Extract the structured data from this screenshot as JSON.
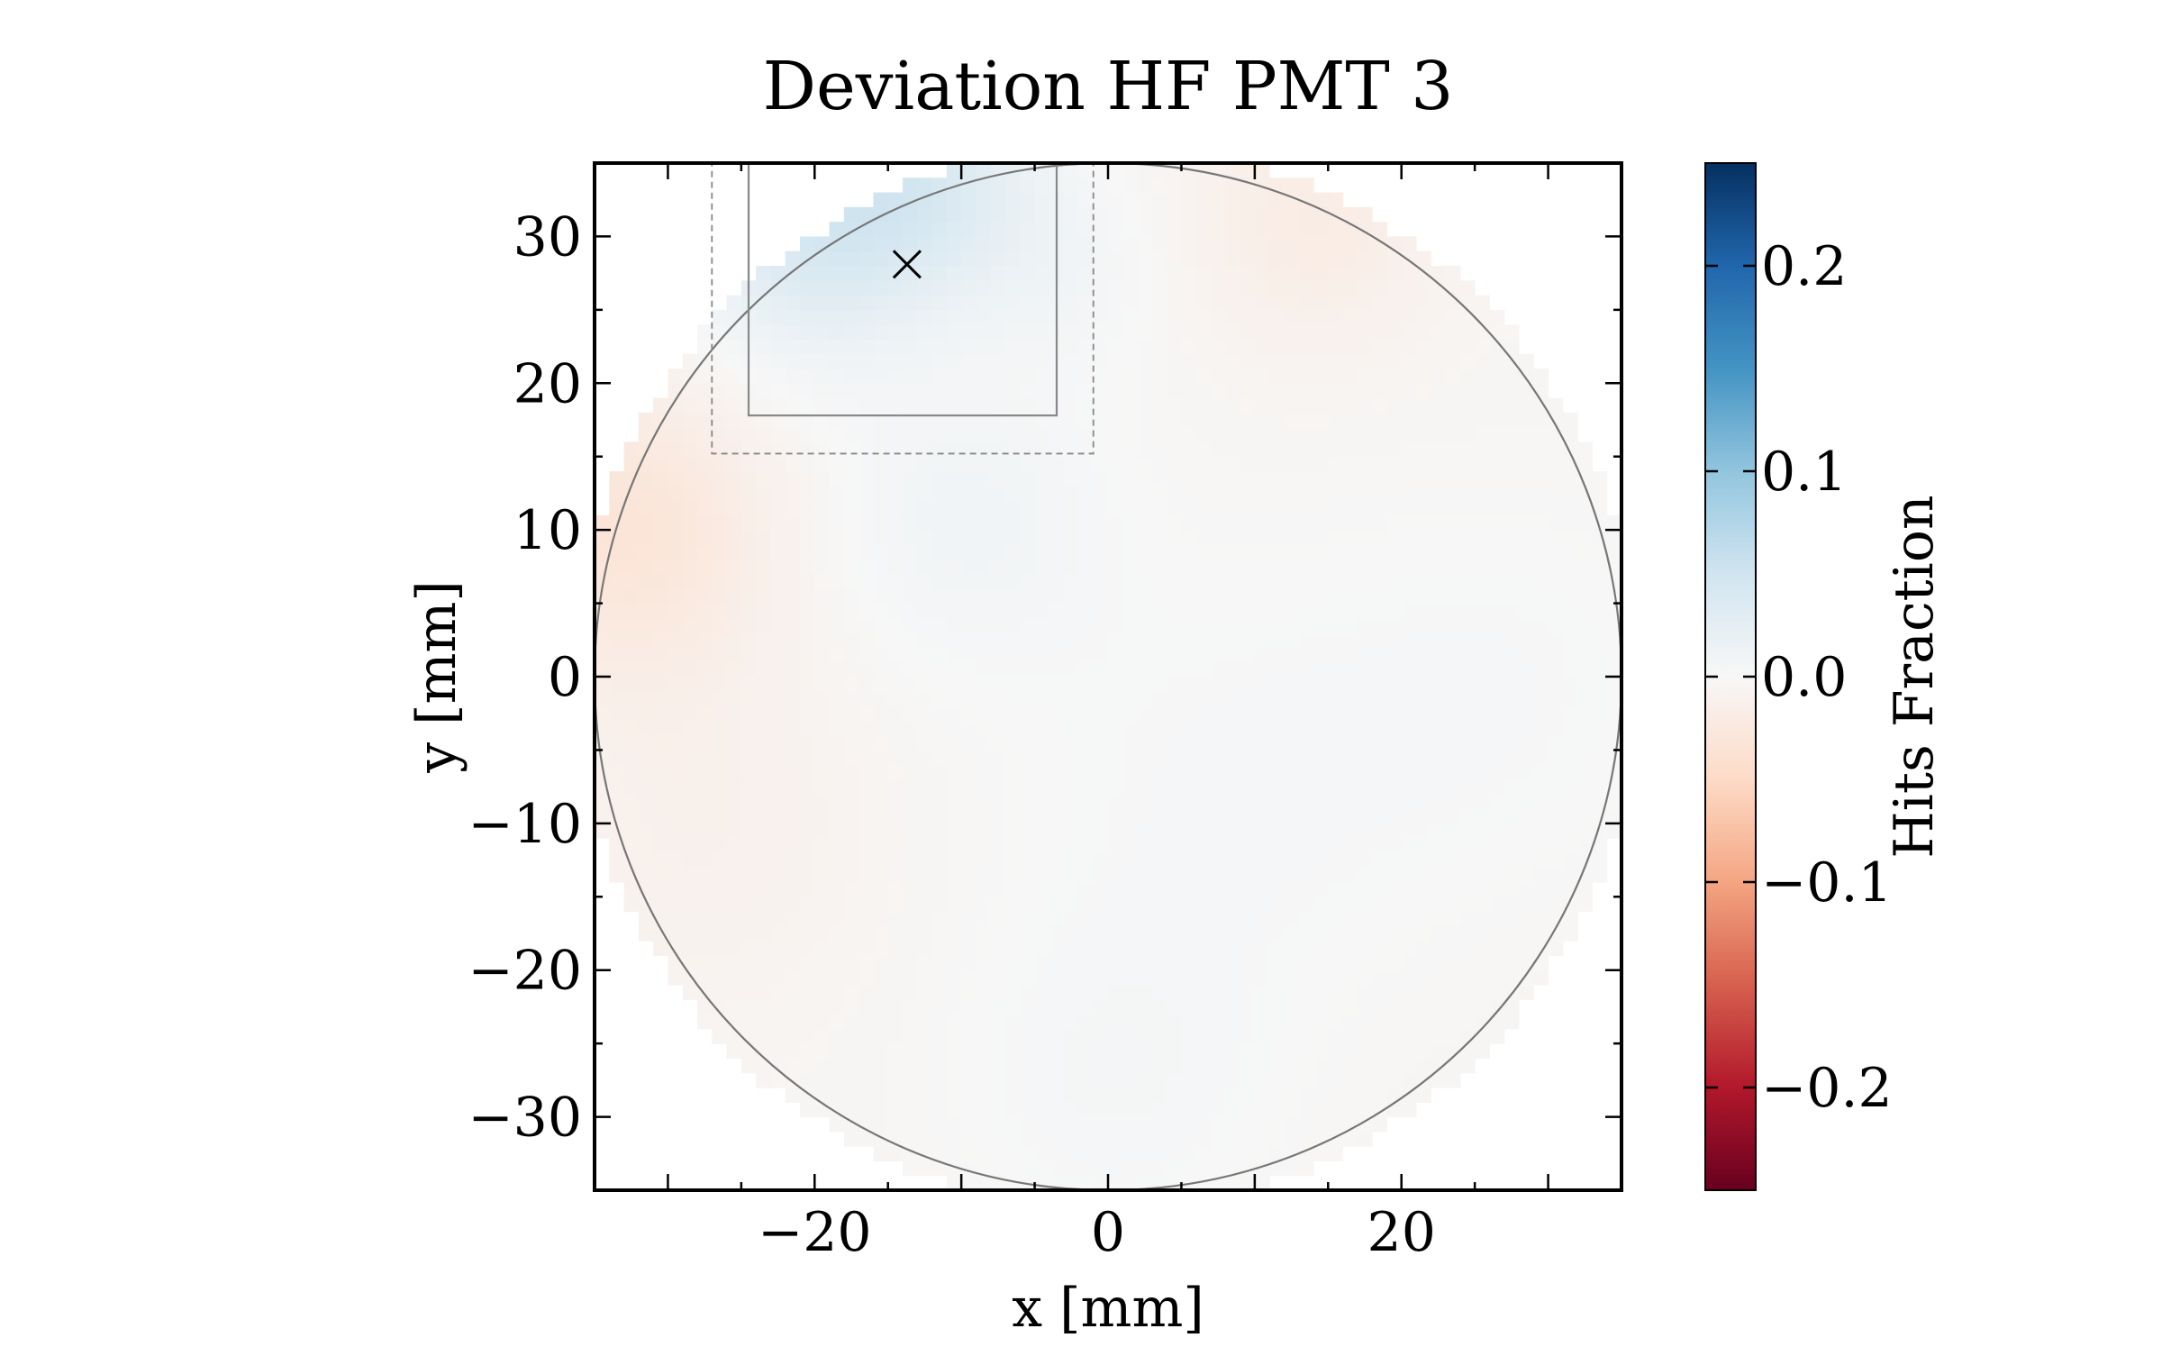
{
  "chart_data": {
    "type": "heatmap",
    "title": "Deviation HF PMT 3",
    "xlabel": "x [mm]",
    "ylabel": "y [mm]",
    "xlim": [
      -35,
      35
    ],
    "ylim": [
      -35,
      35
    ],
    "x_ticks": [
      -20,
      0,
      20
    ],
    "y_ticks": [
      -30,
      -20,
      -10,
      0,
      10,
      20,
      30
    ],
    "x_tick_labels": [
      "−20",
      "0",
      "20"
    ],
    "y_tick_labels": [
      "−30",
      "−20",
      "−10",
      "0",
      "10",
      "20",
      "30"
    ],
    "colorbar": {
      "label": "Hits Fraction",
      "colormap": "RdBu",
      "range": [
        -0.25,
        0.25
      ],
      "ticks": [
        -0.2,
        -0.1,
        0.0,
        0.1,
        0.2
      ],
      "tick_labels": [
        "−0.2",
        "−0.1",
        "0.0",
        "0.1",
        "0.2"
      ],
      "colors": [
        "#67001f",
        "#b2182b",
        "#d6604d",
        "#f4a582",
        "#fddbc7",
        "#f7f7f7",
        "#d1e5f0",
        "#92c5de",
        "#4393c3",
        "#2166ac",
        "#053061"
      ]
    },
    "pmt_circle": {
      "center": [
        0,
        0
      ],
      "radius": 35
    },
    "inner_box": {
      "x": [
        -24.5,
        -3.5
      ],
      "y": [
        17.8,
        35
      ]
    },
    "outer_box": {
      "x": [
        -27,
        -1
      ],
      "y": [
        15.2,
        35
      ]
    },
    "marker": {
      "x": -13.7,
      "y": 28.1,
      "symbol": "x"
    },
    "deviation_field": {
      "background": -0.004,
      "blobs": [
        {
          "x": -20,
          "y": 31,
          "sigma": 6,
          "value": 0.045
        },
        {
          "x": -12,
          "y": 34,
          "sigma": 5,
          "value": 0.03
        },
        {
          "x": -10,
          "y": 11,
          "sigma": 7,
          "value": 0.012
        },
        {
          "x": -3,
          "y": 28,
          "sigma": 5,
          "value": 0.01
        },
        {
          "x": -33,
          "y": 10,
          "sigma": 7,
          "value": -0.028
        },
        {
          "x": 14,
          "y": 31,
          "sigma": 6,
          "value": -0.015
        },
        {
          "x": -28,
          "y": -10,
          "sigma": 8,
          "value": -0.008
        },
        {
          "x": 8,
          "y": -8,
          "sigma": 12,
          "value": 0.006
        },
        {
          "x": 28,
          "y": 0,
          "sigma": 10,
          "value": 0.005
        },
        {
          "x": 0,
          "y": -28,
          "sigma": 8,
          "value": 0.007
        }
      ]
    }
  }
}
